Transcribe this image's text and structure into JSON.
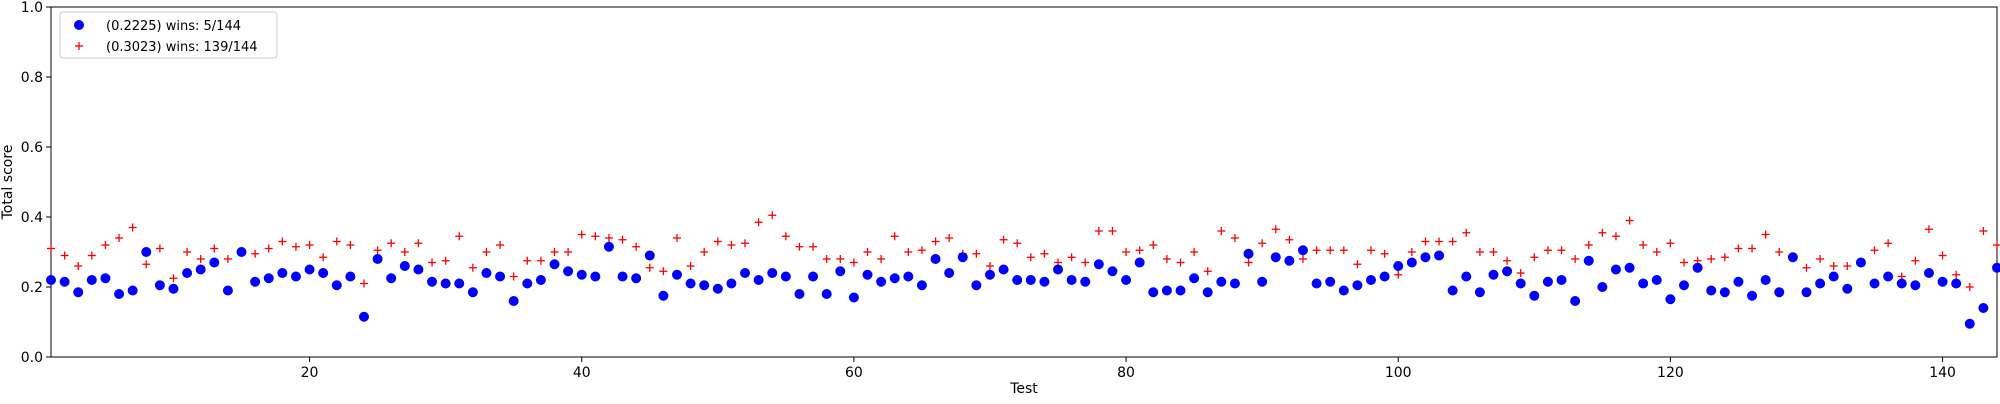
{
  "chart_data": {
    "type": "scatter",
    "title": "",
    "xlabel": "Test",
    "ylabel": "Total score",
    "xlim": [
      1,
      144
    ],
    "ylim": [
      0,
      1.0
    ],
    "xticks": [
      20,
      40,
      60,
      80,
      100,
      120,
      140
    ],
    "xtick_labels": [
      "20",
      "40",
      "60",
      "80",
      "100",
      "120",
      "140"
    ],
    "yticks": [
      0.0,
      0.2,
      0.4,
      0.6,
      0.8,
      1.0
    ],
    "ytick_labels": [
      "0.0",
      "0.2",
      "0.4",
      "0.6",
      "0.8",
      "1.0"
    ],
    "grid": false,
    "legend_position": "top-left",
    "series": [
      {
        "name": "(0.2225) wins: 5/144",
        "marker": "circle",
        "color": "#0000ff",
        "x": [
          1,
          2,
          3,
          4,
          5,
          6,
          7,
          8,
          9,
          10,
          11,
          12,
          13,
          14,
          15,
          16,
          17,
          18,
          19,
          20,
          21,
          22,
          23,
          24,
          25,
          26,
          27,
          28,
          29,
          30,
          31,
          32,
          33,
          34,
          35,
          36,
          37,
          38,
          39,
          40,
          41,
          42,
          43,
          44,
          45,
          46,
          47,
          48,
          49,
          50,
          51,
          52,
          53,
          54,
          55,
          56,
          57,
          58,
          59,
          60,
          61,
          62,
          63,
          64,
          65,
          66,
          67,
          68,
          69,
          70,
          71,
          72,
          73,
          74,
          75,
          76,
          77,
          78,
          79,
          80,
          81,
          82,
          83,
          84,
          85,
          86,
          87,
          88,
          89,
          90,
          91,
          92,
          93,
          94,
          95,
          96,
          97,
          98,
          99,
          100,
          101,
          102,
          103,
          104,
          105,
          106,
          107,
          108,
          109,
          110,
          111,
          112,
          113,
          114,
          115,
          116,
          117,
          118,
          119,
          120,
          121,
          122,
          123,
          124,
          125,
          126,
          127,
          128,
          129,
          130,
          131,
          132,
          133,
          134,
          135,
          136,
          137,
          138,
          139,
          140,
          141,
          142,
          143,
          144
        ],
        "y": [
          0.22,
          0.215,
          0.185,
          0.22,
          0.225,
          0.18,
          0.19,
          0.3,
          0.205,
          0.195,
          0.24,
          0.25,
          0.27,
          0.19,
          0.3,
          0.215,
          0.225,
          0.24,
          0.23,
          0.25,
          0.24,
          0.205,
          0.23,
          0.115,
          0.28,
          0.225,
          0.26,
          0.25,
          0.215,
          0.21,
          0.21,
          0.185,
          0.24,
          0.23,
          0.16,
          0.21,
          0.22,
          0.265,
          0.245,
          0.235,
          0.23,
          0.315,
          0.23,
          0.225,
          0.29,
          0.175,
          0.235,
          0.21,
          0.205,
          0.195,
          0.21,
          0.24,
          0.22,
          0.24,
          0.23,
          0.18,
          0.23,
          0.18,
          0.245,
          0.17,
          0.235,
          0.215,
          0.225,
          0.23,
          0.205,
          0.28,
          0.24,
          0.285,
          0.205,
          0.235,
          0.25,
          0.22,
          0.22,
          0.215,
          0.25,
          0.22,
          0.215,
          0.265,
          0.245,
          0.22,
          0.27,
          0.185,
          0.19,
          0.19,
          0.225,
          0.185,
          0.215,
          0.21,
          0.295,
          0.215,
          0.285,
          0.275,
          0.305,
          0.21,
          0.215,
          0.19,
          0.205,
          0.22,
          0.23,
          0.26,
          0.27,
          0.285,
          0.29,
          0.19,
          0.23,
          0.185,
          0.235,
          0.245,
          0.21,
          0.175,
          0.215,
          0.22,
          0.16,
          0.275,
          0.2,
          0.25,
          0.255,
          0.21,
          0.22,
          0.165,
          0.205,
          0.255,
          0.19,
          0.185,
          0.215,
          0.175,
          0.22,
          0.185,
          0.285,
          0.185,
          0.21,
          0.23,
          0.195,
          0.27,
          0.21,
          0.23,
          0.21,
          0.205,
          0.24,
          0.215,
          0.21,
          0.095,
          0.14,
          0.255
        ]
      },
      {
        "name": "(0.3023) wins: 139/144",
        "marker": "plus",
        "color": "#ff0000",
        "x": [
          1,
          2,
          3,
          4,
          5,
          6,
          7,
          8,
          9,
          10,
          11,
          12,
          13,
          14,
          15,
          16,
          17,
          18,
          19,
          20,
          21,
          22,
          23,
          24,
          25,
          26,
          27,
          28,
          29,
          30,
          31,
          32,
          33,
          34,
          35,
          36,
          37,
          38,
          39,
          40,
          41,
          42,
          43,
          44,
          45,
          46,
          47,
          48,
          49,
          50,
          51,
          52,
          53,
          54,
          55,
          56,
          57,
          58,
          59,
          60,
          61,
          62,
          63,
          64,
          65,
          66,
          67,
          68,
          69,
          70,
          71,
          72,
          73,
          74,
          75,
          76,
          77,
          78,
          79,
          80,
          81,
          82,
          83,
          84,
          85,
          86,
          87,
          88,
          89,
          90,
          91,
          92,
          93,
          94,
          95,
          96,
          97,
          98,
          99,
          100,
          101,
          102,
          103,
          104,
          105,
          106,
          107,
          108,
          109,
          110,
          111,
          112,
          113,
          114,
          115,
          116,
          117,
          118,
          119,
          120,
          121,
          122,
          123,
          124,
          125,
          126,
          127,
          128,
          129,
          130,
          131,
          132,
          133,
          134,
          135,
          136,
          137,
          138,
          139,
          140,
          141,
          142,
          143,
          144
        ],
        "y": [
          0.31,
          0.29,
          0.26,
          0.29,
          0.32,
          0.34,
          0.37,
          0.265,
          0.31,
          0.225,
          0.3,
          0.28,
          0.31,
          0.28,
          0.3,
          0.295,
          0.31,
          0.33,
          0.315,
          0.32,
          0.285,
          0.33,
          0.32,
          0.21,
          0.305,
          0.325,
          0.3,
          0.325,
          0.27,
          0.275,
          0.345,
          0.255,
          0.3,
          0.32,
          0.23,
          0.275,
          0.275,
          0.3,
          0.3,
          0.35,
          0.345,
          0.34,
          0.335,
          0.315,
          0.255,
          0.245,
          0.34,
          0.26,
          0.3,
          0.33,
          0.32,
          0.325,
          0.385,
          0.405,
          0.345,
          0.315,
          0.315,
          0.28,
          0.28,
          0.27,
          0.3,
          0.28,
          0.345,
          0.3,
          0.305,
          0.33,
          0.34,
          0.295,
          0.295,
          0.26,
          0.335,
          0.325,
          0.285,
          0.295,
          0.27,
          0.285,
          0.27,
          0.36,
          0.36,
          0.3,
          0.305,
          0.32,
          0.28,
          0.27,
          0.3,
          0.245,
          0.36,
          0.34,
          0.27,
          0.325,
          0.365,
          0.335,
          0.28,
          0.305,
          0.305,
          0.305,
          0.265,
          0.305,
          0.295,
          0.235,
          0.3,
          0.33,
          0.33,
          0.33,
          0.355,
          0.3,
          0.3,
          0.275,
          0.24,
          0.285,
          0.305,
          0.305,
          0.28,
          0.32,
          0.355,
          0.345,
          0.39,
          0.32,
          0.3,
          0.325,
          0.27,
          0.275,
          0.28,
          0.285,
          0.31,
          0.31,
          0.35,
          0.3,
          0.285,
          0.255,
          0.28,
          0.26,
          0.26,
          0.27,
          0.305,
          0.325,
          0.23,
          0.275,
          0.365,
          0.29,
          0.235,
          0.2,
          0.36,
          0.32
        ]
      }
    ]
  }
}
